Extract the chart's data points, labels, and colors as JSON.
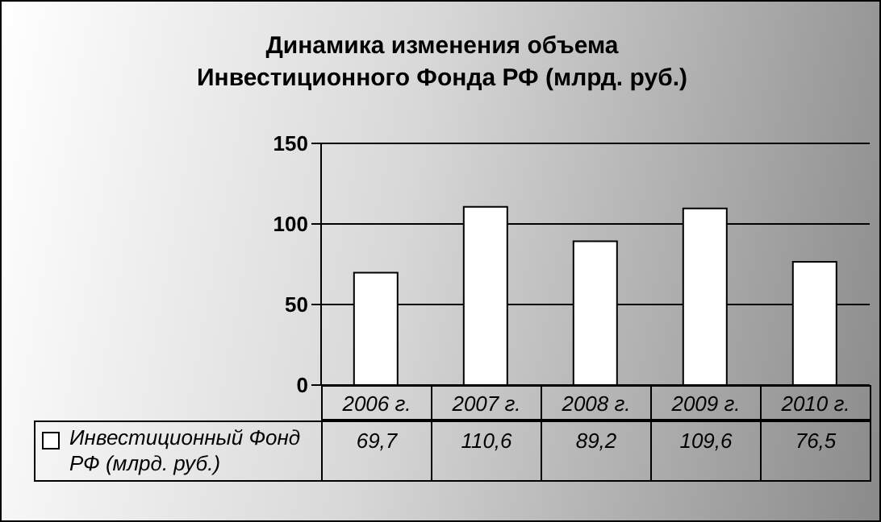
{
  "chart_data": {
    "type": "bar",
    "title": "Динамика изменения объема\nИнвестиционного Фонда  РФ (млрд. руб.)",
    "categories": [
      "2006 г.",
      "2007 г.",
      "2008 г.",
      "2009 г.",
      "2010 г."
    ],
    "series": [
      {
        "name": "Инвестиционный Фонд РФ (млрд. руб.)",
        "color": "#ffffff",
        "values": [
          69.7,
          110.6,
          89.2,
          109.6,
          76.5
        ],
        "value_labels": [
          "69,7",
          "110,6",
          "89,2",
          "109,6",
          "76,5"
        ]
      }
    ],
    "ylim": [
      0,
      150
    ],
    "yticks": [
      0,
      50,
      100,
      150
    ],
    "grid": "y",
    "legend": "bottom left"
  }
}
